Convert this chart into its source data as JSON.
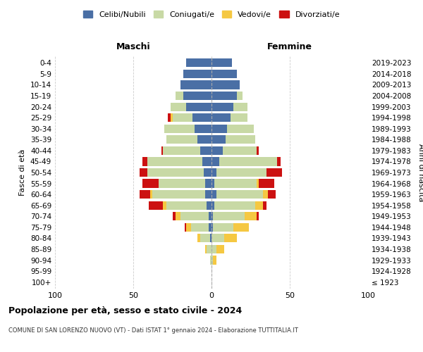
{
  "age_groups": [
    "100+",
    "95-99",
    "90-94",
    "85-89",
    "80-84",
    "75-79",
    "70-74",
    "65-69",
    "60-64",
    "55-59",
    "50-54",
    "45-49",
    "40-44",
    "35-39",
    "30-34",
    "25-29",
    "20-24",
    "15-19",
    "10-14",
    "5-9",
    "0-4"
  ],
  "birth_years": [
    "≤ 1923",
    "1924-1928",
    "1929-1933",
    "1934-1938",
    "1939-1943",
    "1944-1948",
    "1949-1953",
    "1954-1958",
    "1959-1963",
    "1964-1968",
    "1969-1973",
    "1974-1978",
    "1979-1983",
    "1984-1988",
    "1989-1993",
    "1994-1998",
    "1999-2003",
    "2004-2008",
    "2009-2013",
    "2014-2018",
    "2019-2023"
  ],
  "colors": {
    "celibi": "#4a6fa5",
    "coniugati": "#c8d9a5",
    "vedovi": "#f5c842",
    "divorziati": "#cc1111"
  },
  "maschi": {
    "celibi": [
      0,
      0,
      0,
      0,
      1,
      2,
      2,
      3,
      4,
      4,
      5,
      6,
      7,
      9,
      11,
      12,
      16,
      18,
      20,
      18,
      16
    ],
    "coniugati": [
      0,
      0,
      1,
      3,
      6,
      11,
      18,
      26,
      34,
      30,
      36,
      35,
      24,
      20,
      19,
      13,
      10,
      5,
      0,
      0,
      0
    ],
    "vedovi": [
      0,
      0,
      0,
      1,
      2,
      3,
      3,
      2,
      1,
      0,
      0,
      0,
      0,
      0,
      0,
      1,
      0,
      0,
      0,
      0,
      0
    ],
    "divorziati": [
      0,
      0,
      0,
      0,
      0,
      1,
      2,
      9,
      7,
      10,
      5,
      3,
      1,
      0,
      0,
      2,
      0,
      0,
      0,
      0,
      0
    ]
  },
  "femmine": {
    "celibi": [
      0,
      0,
      0,
      0,
      0,
      1,
      1,
      2,
      3,
      2,
      3,
      5,
      7,
      9,
      10,
      12,
      14,
      16,
      18,
      16,
      13
    ],
    "coniugati": [
      0,
      0,
      1,
      3,
      8,
      13,
      20,
      26,
      30,
      27,
      32,
      37,
      22,
      19,
      17,
      11,
      9,
      4,
      0,
      0,
      0
    ],
    "vedovi": [
      0,
      0,
      2,
      5,
      8,
      10,
      8,
      5,
      3,
      1,
      0,
      0,
      0,
      0,
      0,
      0,
      0,
      0,
      0,
      0,
      0
    ],
    "divorziati": [
      0,
      0,
      0,
      0,
      0,
      0,
      1,
      2,
      5,
      10,
      10,
      2,
      1,
      0,
      0,
      0,
      0,
      0,
      0,
      0,
      0
    ]
  },
  "xlim": 100,
  "title": "Popolazione per età, sesso e stato civile - 2024",
  "subtitle": "COMUNE DI SAN LORENZO NUOVO (VT) - Dati ISTAT 1° gennaio 2024 - Elaborazione TUTTITALIA.IT",
  "ylabel": "Fasce di età",
  "ylabel_right": "Anni di nascita",
  "legend_labels": [
    "Celibi/Nubili",
    "Coniugati/e",
    "Vedovi/e",
    "Divorziati/e"
  ],
  "maschi_label": "Maschi",
  "femmine_label": "Femmine",
  "xticks": [
    -100,
    -50,
    0,
    50,
    100
  ],
  "xticklabels": [
    "100",
    "50",
    "0",
    "50",
    "100"
  ],
  "background_color": "#ffffff",
  "grid_color": "#cccccc"
}
